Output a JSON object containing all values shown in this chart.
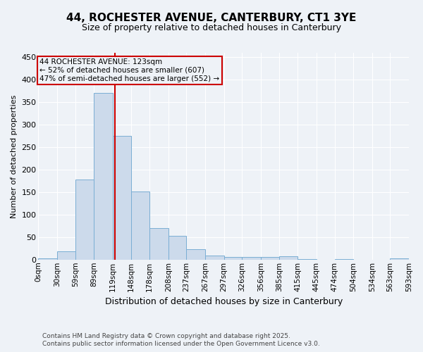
{
  "title1": "44, ROCHESTER AVENUE, CANTERBURY, CT1 3YE",
  "title2": "Size of property relative to detached houses in Canterbury",
  "xlabel": "Distribution of detached houses by size in Canterbury",
  "ylabel": "Number of detached properties",
  "bin_edges": [
    0,
    30,
    59,
    89,
    119,
    148,
    178,
    208,
    237,
    267,
    297,
    326,
    356,
    385,
    415,
    445,
    474,
    504,
    534,
    563,
    593
  ],
  "bar_heights": [
    2,
    18,
    178,
    370,
    275,
    152,
    70,
    53,
    23,
    9,
    6,
    6,
    6,
    7,
    1,
    0,
    1,
    0,
    0,
    3
  ],
  "bar_color": "#ccdaeb",
  "bar_edgecolor": "#7aaed4",
  "property_size": 123,
  "vline_color": "#cc0000",
  "annotation_line1": "44 ROCHESTER AVENUE: 123sqm",
  "annotation_line2": "← 52% of detached houses are smaller (607)",
  "annotation_line3": "47% of semi-detached houses are larger (552) →",
  "annotation_box_color": "#cc0000",
  "ylim": [
    0,
    460
  ],
  "yticks": [
    0,
    50,
    100,
    150,
    200,
    250,
    300,
    350,
    400,
    450
  ],
  "bg_color": "#eef2f7",
  "footer1": "Contains HM Land Registry data © Crown copyright and database right 2025.",
  "footer2": "Contains public sector information licensed under the Open Government Licence v3.0.",
  "grid_color": "#ffffff",
  "title1_fontsize": 11,
  "title2_fontsize": 9,
  "xlabel_fontsize": 9,
  "ylabel_fontsize": 8,
  "tick_fontsize": 7.5,
  "annot_fontsize": 7.5,
  "footer_fontsize": 6.5
}
